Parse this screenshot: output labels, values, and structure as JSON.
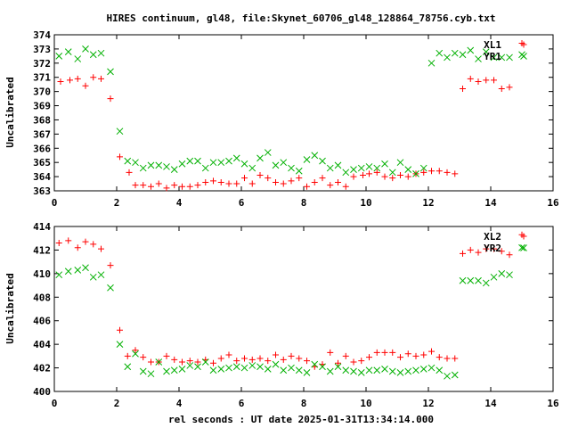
{
  "title": "HIRES continuum, gl48, file:Skynet_60706_gl48_128864_78756.cyb.txt",
  "xlabel": "rel seconds : UT date 2025-01-31T13:34:14.000",
  "colors": {
    "red": "#ff0000",
    "green": "#00b000",
    "frame": "#000000",
    "background": "#ffffff"
  },
  "chart_data": [
    {
      "type": "scatter",
      "ylabel": "Uncalibrated",
      "xlim": [
        0,
        16
      ],
      "ylim": [
        363,
        374
      ],
      "xticks": [
        0,
        2,
        4,
        6,
        8,
        10,
        12,
        14,
        16
      ],
      "yticks": [
        363,
        364,
        365,
        366,
        367,
        368,
        369,
        370,
        371,
        372,
        373,
        374
      ],
      "grid": false,
      "legend_position": "top-right",
      "series": [
        {
          "name": "XL1",
          "marker": "plus",
          "color": "#ff0000",
          "x": [
            0.2,
            0.5,
            0.75,
            1.0,
            1.25,
            1.5,
            1.8,
            2.1,
            2.4,
            2.6,
            2.85,
            3.1,
            3.35,
            3.6,
            3.85,
            4.1,
            4.35,
            4.6,
            4.85,
            5.1,
            5.35,
            5.6,
            5.85,
            6.1,
            6.35,
            6.6,
            6.85,
            7.1,
            7.35,
            7.6,
            7.85,
            8.1,
            8.35,
            8.6,
            8.85,
            9.1,
            9.35,
            9.6,
            9.9,
            10.1,
            10.35,
            10.6,
            10.85,
            11.1,
            11.35,
            11.6,
            11.85,
            12.1,
            12.35,
            12.6,
            12.85,
            13.1,
            13.35,
            13.6,
            13.85,
            14.1,
            14.35,
            14.6,
            15.0
          ],
          "y": [
            370.7,
            370.8,
            370.9,
            370.4,
            371.0,
            370.9,
            369.5,
            365.4,
            364.3,
            363.4,
            363.4,
            363.3,
            363.5,
            363.2,
            363.4,
            363.3,
            363.3,
            363.4,
            363.6,
            363.7,
            363.6,
            363.5,
            363.5,
            363.9,
            363.5,
            364.1,
            363.9,
            363.6,
            363.5,
            363.7,
            363.9,
            363.3,
            363.6,
            363.9,
            363.4,
            363.6,
            363.3,
            364.0,
            364.1,
            364.2,
            364.3,
            364.0,
            363.9,
            364.1,
            364.0,
            364.2,
            364.3,
            364.4,
            364.4,
            364.3,
            364.2,
            370.2,
            370.9,
            370.7,
            370.8,
            370.8,
            370.2,
            370.3,
            373.4
          ]
        },
        {
          "name": "YR1",
          "marker": "cross",
          "color": "#00b000",
          "x": [
            0.15,
            0.45,
            0.75,
            1.0,
            1.25,
            1.5,
            1.8,
            2.1,
            2.35,
            2.6,
            2.85,
            3.1,
            3.35,
            3.6,
            3.85,
            4.1,
            4.35,
            4.6,
            4.85,
            5.1,
            5.35,
            5.6,
            5.85,
            6.1,
            6.35,
            6.6,
            6.85,
            7.1,
            7.35,
            7.6,
            7.85,
            8.1,
            8.35,
            8.6,
            8.85,
            9.1,
            9.35,
            9.6,
            9.85,
            10.1,
            10.35,
            10.6,
            10.85,
            11.1,
            11.35,
            11.6,
            11.85,
            12.1,
            12.35,
            12.6,
            12.85,
            13.1,
            13.35,
            13.6,
            13.85,
            14.1,
            14.35,
            14.6,
            15.0
          ],
          "y": [
            372.5,
            372.8,
            372.3,
            373.0,
            372.6,
            372.7,
            371.4,
            367.2,
            365.1,
            365.0,
            364.6,
            364.8,
            364.8,
            364.7,
            364.5,
            364.9,
            365.1,
            365.1,
            364.6,
            365.0,
            365.0,
            365.1,
            365.3,
            364.9,
            364.6,
            365.3,
            365.7,
            364.8,
            365.0,
            364.6,
            364.4,
            365.2,
            365.5,
            365.1,
            364.6,
            364.8,
            364.3,
            364.5,
            364.6,
            364.7,
            364.6,
            364.9,
            364.3,
            365.0,
            364.5,
            364.2,
            364.6,
            372.0,
            372.7,
            372.4,
            372.7,
            372.6,
            372.9,
            372.3,
            372.8,
            372.4,
            372.4,
            372.4,
            372.6
          ]
        }
      ]
    },
    {
      "type": "scatter",
      "ylabel": "Uncalibrated",
      "xlim": [
        0,
        16
      ],
      "ylim": [
        400,
        414
      ],
      "xticks": [
        0,
        2,
        4,
        6,
        8,
        10,
        12,
        14,
        16
      ],
      "yticks": [
        400,
        402,
        404,
        406,
        408,
        410,
        412,
        414
      ],
      "grid": false,
      "legend_position": "top-right",
      "series": [
        {
          "name": "XL2",
          "marker": "plus",
          "color": "#ff0000",
          "x": [
            0.15,
            0.45,
            0.75,
            1.0,
            1.25,
            1.5,
            1.8,
            2.1,
            2.35,
            2.6,
            2.85,
            3.1,
            3.35,
            3.6,
            3.85,
            4.1,
            4.35,
            4.6,
            4.85,
            5.1,
            5.35,
            5.6,
            5.85,
            6.1,
            6.35,
            6.6,
            6.85,
            7.1,
            7.35,
            7.6,
            7.85,
            8.1,
            8.35,
            8.6,
            8.85,
            9.1,
            9.35,
            9.6,
            9.85,
            10.1,
            10.35,
            10.6,
            10.85,
            11.1,
            11.35,
            11.6,
            11.85,
            12.1,
            12.35,
            12.6,
            12.85,
            13.1,
            13.35,
            13.6,
            13.85,
            14.1,
            14.35,
            14.6,
            15.0
          ],
          "y": [
            412.6,
            412.8,
            412.2,
            412.7,
            412.5,
            412.1,
            410.7,
            405.2,
            403.0,
            403.5,
            402.9,
            402.5,
            402.5,
            403.0,
            402.7,
            402.5,
            402.6,
            402.5,
            402.7,
            402.4,
            402.8,
            403.1,
            402.6,
            402.8,
            402.7,
            402.8,
            402.6,
            403.1,
            402.7,
            403.0,
            402.8,
            402.6,
            402.1,
            402.3,
            403.3,
            402.4,
            403.0,
            402.5,
            402.6,
            402.9,
            403.3,
            403.3,
            403.3,
            402.9,
            403.2,
            403.0,
            403.1,
            403.4,
            402.9,
            402.8,
            402.8,
            411.7,
            412.0,
            411.8,
            412.1,
            412.1,
            411.9,
            411.6,
            413.3
          ]
        },
        {
          "name": "YR2",
          "marker": "cross",
          "color": "#00b000",
          "x": [
            0.15,
            0.45,
            0.75,
            1.0,
            1.25,
            1.5,
            1.8,
            2.1,
            2.35,
            2.6,
            2.85,
            3.1,
            3.35,
            3.6,
            3.85,
            4.1,
            4.35,
            4.6,
            4.85,
            5.1,
            5.35,
            5.6,
            5.85,
            6.1,
            6.35,
            6.6,
            6.85,
            7.1,
            7.35,
            7.6,
            7.85,
            8.1,
            8.35,
            8.6,
            8.85,
            9.1,
            9.35,
            9.6,
            9.85,
            10.1,
            10.35,
            10.6,
            10.85,
            11.1,
            11.35,
            11.6,
            11.85,
            12.1,
            12.35,
            12.6,
            12.85,
            13.1,
            13.35,
            13.6,
            13.85,
            14.1,
            14.35,
            14.6,
            15.0
          ],
          "y": [
            409.9,
            410.2,
            410.3,
            410.5,
            409.7,
            409.9,
            408.8,
            404.0,
            402.1,
            403.2,
            401.7,
            401.5,
            402.5,
            401.7,
            401.8,
            401.9,
            402.2,
            402.1,
            402.5,
            401.8,
            401.9,
            402.0,
            402.1,
            402.0,
            402.2,
            402.1,
            401.9,
            402.3,
            401.8,
            402.0,
            401.8,
            401.6,
            402.3,
            402.1,
            401.7,
            402.1,
            401.8,
            401.7,
            401.6,
            401.8,
            401.8,
            401.9,
            401.7,
            401.6,
            401.7,
            401.8,
            401.9,
            402.0,
            401.8,
            401.3,
            401.4,
            409.4,
            409.4,
            409.4,
            409.2,
            409.7,
            410.0,
            409.9,
            412.2
          ]
        }
      ]
    }
  ]
}
